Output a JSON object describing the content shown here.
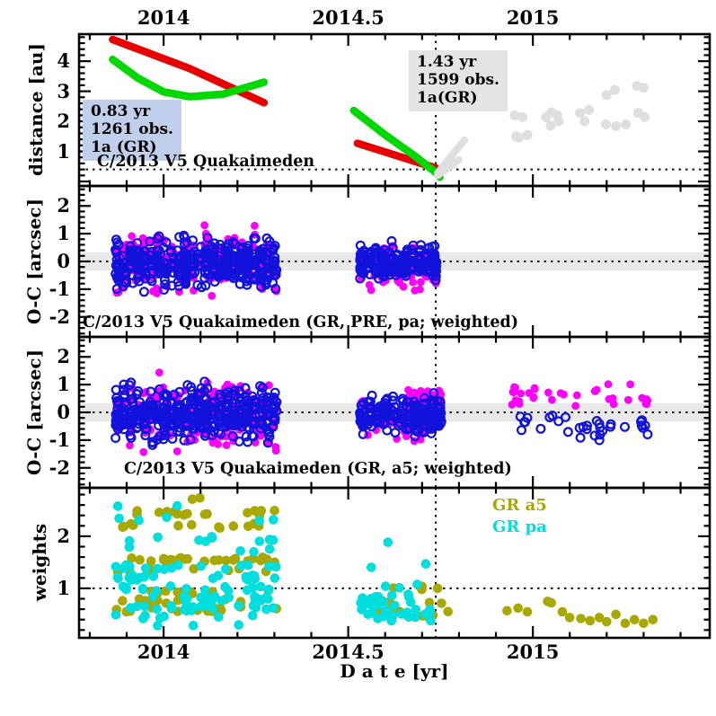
{
  "colors": {
    "band": "#e9e9e9",
    "frame": "#000000",
    "red": "#e80000",
    "green": "#00d800",
    "magenta": "#ff00ff",
    "blue": "#1212dd",
    "olive": "#a8a800",
    "cyan": "#00dede",
    "gray_points": "#dfdfdf",
    "annotation_blue_bg": "#bfcfec",
    "annotation_gray_bg": "#e4e4e4"
  },
  "xlabel": "D a t e [yr]",
  "chart_data": [
    {
      "id": "distance",
      "type": "scatter",
      "title": "C/2013 V5 Quakaimeden",
      "ylabel": "distance [au]",
      "ylim": [
        -0.15,
        4.9
      ],
      "yticks": [
        1,
        2,
        3,
        4
      ],
      "ytick_labels": [
        "1",
        "2",
        "3",
        "4"
      ],
      "xlim": [
        2013.771,
        2015.479
      ],
      "xticks": [
        2014,
        2014.5,
        2015
      ],
      "xtick_labels": [
        "2014",
        "2014.5",
        "2015"
      ],
      "hline": 0.4,
      "vline": 2014.737,
      "label": "C/2013 V5 Quakaimeden",
      "annotations": [
        {
          "lines": [
            "0.83 yr",
            "1261 obs.",
            "1a (GR)"
          ],
          "bg": "#bfcfec"
        },
        {
          "lines": [
            "1.43 yr",
            "1599 obs.",
            "1a(GR)"
          ],
          "bg": "#e4e4e4"
        }
      ],
      "series": [
        {
          "name": "helio-distance-arc1",
          "color": "#e80000",
          "width": 8.5,
          "path": [
            [
              2013.862,
              4.72
            ],
            [
              2014.07,
              3.76
            ],
            [
              2014.272,
              2.62
            ]
          ]
        },
        {
          "name": "geo-distance-arc1",
          "color": "#00d800",
          "width": 8.5,
          "path": [
            [
              2013.862,
              4.06
            ],
            [
              2013.93,
              3.44
            ],
            [
              2014.0,
              2.98
            ],
            [
              2014.07,
              2.82
            ],
            [
              2014.16,
              2.9
            ],
            [
              2014.272,
              3.3
            ]
          ]
        },
        {
          "name": "helio-distance-arc2",
          "color": "#e80000",
          "width": 8.5,
          "path": [
            [
              2014.525,
              1.27
            ],
            [
              2014.737,
              0.45
            ]
          ]
        },
        {
          "name": "geo-distance-arc2",
          "color": "#00d800",
          "width": 8.5,
          "path": [
            [
              2014.515,
              2.36
            ],
            [
              2014.6,
              1.55
            ],
            [
              2014.68,
              0.85
            ],
            [
              2014.737,
              0.3
            ],
            [
              2014.748,
              0.15
            ]
          ]
        },
        {
          "name": "predicted-branch-a",
          "color": "#dfdfdf",
          "width": 8,
          "path": [
            [
              2014.742,
              0.28
            ],
            [
              2014.815,
              1.38
            ]
          ]
        },
        {
          "name": "predicted-branch-b",
          "color": "#dfdfdf",
          "width": 8,
          "path": [
            [
              2014.742,
              0.2
            ],
            [
              2014.8,
              0.72
            ]
          ]
        },
        {
          "name": "predicted-points",
          "color": "#dfdfdf",
          "style": "filled",
          "r": 5.5,
          "points": [
            [
              2014.951,
              2.2
            ],
            [
              2014.972,
              2.14
            ],
            [
              2014.985,
              1.54
            ],
            [
              2014.962,
              1.46
            ],
            [
              2015.036,
              2.14
            ],
            [
              2015.048,
              1.86
            ],
            [
              2015.066,
              2.2
            ],
            [
              2015.07,
              2.0
            ],
            [
              2015.128,
              2.28
            ],
            [
              2015.14,
              2.0
            ],
            [
              2015.152,
              2.38
            ],
            [
              2015.2,
              2.88
            ],
            [
              2015.222,
              3.04
            ],
            [
              2015.198,
              1.9
            ],
            [
              2015.225,
              1.84
            ],
            [
              2015.252,
              1.9
            ],
            [
              2015.282,
              3.18
            ],
            [
              2015.3,
              3.12
            ],
            [
              2015.285,
              2.28
            ],
            [
              2015.303,
              2.14
            ],
            [
              2014.955,
              1.5
            ],
            [
              2015.05,
              2.3
            ]
          ]
        }
      ]
    },
    {
      "id": "oc-pre",
      "type": "scatter",
      "ylabel": "O-C [arcsec]",
      "ylim": [
        -2.72,
        2.72
      ],
      "yticks": [
        -2,
        -1,
        0,
        1,
        2
      ],
      "ytick_labels": [
        "-2",
        "-1",
        "0",
        "1",
        "2"
      ],
      "band": [
        -0.33,
        0.33
      ],
      "hline": 0,
      "vline": 2014.737,
      "label": "C/2013 V5 Quakaimeden (GR, PRE, pa; weighted)",
      "series": [
        {
          "name": "residuals-filled",
          "color": "#ff00ff",
          "style": "filled",
          "r": 4.4,
          "clusters": [
            {
              "t0": 2013.868,
              "t1": 2014.312,
              "clumps": 24,
              "n": 240,
              "mean": -0.02,
              "sd": 0.5,
              "min": -1.25,
              "max": 1.32
            },
            {
              "t0": 2014.53,
              "t1": 2014.745,
              "clumps": 11,
              "n": 110,
              "mean": -0.12,
              "sd": 0.4,
              "min": -1.05,
              "max": 0.62
            }
          ]
        },
        {
          "name": "residuals-open",
          "color": "#1212dd",
          "style": "open",
          "r": 4.4,
          "clusters": [
            {
              "t0": 2013.868,
              "t1": 2014.312,
              "clumps": 24,
              "n": 420,
              "mean": -0.05,
              "sd": 0.4,
              "min": -1.1,
              "max": 1.05
            },
            {
              "t0": 2014.53,
              "t1": 2014.745,
              "clumps": 11,
              "n": 190,
              "mean": -0.05,
              "sd": 0.28,
              "min": -0.85,
              "max": 0.8
            }
          ]
        }
      ]
    },
    {
      "id": "oc-a5",
      "type": "scatter",
      "ylabel": "O-C [arcsec]",
      "ylim": [
        -2.72,
        2.72
      ],
      "yticks": [
        -2,
        -1,
        0,
        1,
        2
      ],
      "ytick_labels": [
        "-2",
        "-1",
        "0",
        "1",
        "2"
      ],
      "band": [
        -0.33,
        0.33
      ],
      "hline": 0,
      "vline": 2014.737,
      "label": "C/2013 V5 Quakaimeden (GR, a5; weighted)",
      "series": [
        {
          "name": "residuals-filled",
          "color": "#ff00ff",
          "style": "filled",
          "r": 4.4,
          "clusters": [
            {
              "t0": 2013.868,
              "t1": 2014.312,
              "clumps": 24,
              "n": 250,
              "mean": 0.0,
              "sd": 0.55,
              "min": -1.5,
              "max": 1.5
            },
            {
              "t0": 2014.53,
              "t1": 2014.71,
              "clumps": 9,
              "n": 60,
              "mean": -0.15,
              "sd": 0.45,
              "min": -1.15,
              "max": 0.7
            },
            {
              "t0": 2014.66,
              "t1": 2014.758,
              "clumps": 6,
              "n": 70,
              "mean": 0.45,
              "sd": 0.2,
              "min": 0.05,
              "max": 0.9
            },
            {
              "t0": 2014.69,
              "t1": 2014.752,
              "clumps": 4,
              "n": 26,
              "mean": -0.55,
              "sd": 0.2,
              "min": -1.0,
              "max": -0.15
            },
            {
              "t0": 2014.94,
              "t1": 2015.325,
              "clumps": 9,
              "n": 36,
              "mean": 0.55,
              "sd": 0.22,
              "min": 0.2,
              "max": 1.05
            }
          ]
        },
        {
          "name": "residuals-open",
          "color": "#1212dd",
          "style": "open",
          "r": 4.4,
          "clusters": [
            {
              "t0": 2013.868,
              "t1": 2014.312,
              "clumps": 24,
              "n": 430,
              "mean": -0.05,
              "sd": 0.43,
              "min": -1.5,
              "max": 1.2
            },
            {
              "t0": 2014.53,
              "t1": 2014.76,
              "clumps": 11,
              "n": 200,
              "mean": -0.1,
              "sd": 0.32,
              "min": -1.0,
              "max": 0.8
            },
            {
              "t0": 2014.96,
              "t1": 2015.325,
              "clumps": 9,
              "n": 32,
              "mean": -0.5,
              "sd": 0.24,
              "min": -1.08,
              "max": -0.02
            }
          ]
        }
      ]
    },
    {
      "id": "weights",
      "type": "scatter",
      "ylabel": "weights",
      "ylim": [
        0.05,
        2.93
      ],
      "yticks": [
        1,
        2
      ],
      "ytick_labels": [
        "1",
        "2"
      ],
      "hline": 1,
      "vline": 2014.737,
      "legend": [
        {
          "label": "GR a5",
          "color": "#a8a800"
        },
        {
          "label": "GR pa",
          "color": "#00dede"
        }
      ],
      "series": [
        {
          "name": "gr-a5-weights",
          "color": "#a8a800",
          "style": "filled",
          "r": 5.3,
          "clusters": [
            {
              "t0": 2013.868,
              "t1": 2014.312,
              "clumps": 24,
              "dist": "bands",
              "jitter": 0.05,
              "bands": [
                [
                  2.7,
                  2
                ],
                [
                  2.45,
                  16
                ],
                [
                  2.2,
                  14
                ],
                [
                  1.55,
                  26
                ],
                [
                  1.35,
                  9
                ],
                [
                  0.95,
                  10
                ],
                [
                  0.75,
                  12
                ],
                [
                  0.6,
                  16
                ]
              ]
            },
            {
              "t0": 2014.53,
              "t1": 2014.79,
              "clumps": 10,
              "dist": "bands",
              "jitter": 0.05,
              "bands": [
                [
                  1.0,
                  3
                ],
                [
                  0.75,
                  6
                ],
                [
                  0.6,
                  8
                ],
                [
                  0.48,
                  6
                ]
              ]
            },
            {
              "points": [
                [
                  2014.742,
                  1.0
                ],
                [
                  2014.93,
                  0.57
                ],
                [
                  2014.96,
                  0.62
                ],
                [
                  2014.985,
                  0.55
                ],
                [
                  2015.04,
                  0.75
                ],
                [
                  2015.05,
                  0.72
                ],
                [
                  2015.08,
                  0.55
                ],
                [
                  2015.1,
                  0.44
                ],
                [
                  2015.13,
                  0.42
                ],
                [
                  2015.155,
                  0.38
                ],
                [
                  2015.18,
                  0.44
                ],
                [
                  2015.2,
                  0.36
                ],
                [
                  2015.225,
                  0.5
                ],
                [
                  2015.25,
                  0.33
                ],
                [
                  2015.275,
                  0.4
                ],
                [
                  2015.3,
                  0.33
                ],
                [
                  2015.325,
                  0.4
                ]
              ]
            }
          ]
        },
        {
          "name": "gr-pa-weights",
          "color": "#00dede",
          "style": "filled",
          "r": 5.3,
          "clusters": [
            {
              "t0": 2013.868,
              "t1": 2014.312,
              "clumps": 24,
              "dist": "bands",
              "jitter": 0.05,
              "bands": [
                [
                  2.55,
                  2
                ],
                [
                  2.35,
                  5
                ],
                [
                  1.95,
                  9
                ],
                [
                  1.75,
                  4
                ],
                [
                  1.4,
                  16
                ],
                [
                  1.2,
                  20
                ],
                [
                  1.0,
                  15
                ],
                [
                  0.8,
                  18
                ],
                [
                  0.62,
                  24
                ],
                [
                  0.45,
                  7
                ],
                [
                  0.3,
                  3
                ]
              ]
            },
            {
              "t0": 2014.53,
              "t1": 2014.74,
              "clumps": 10,
              "dist": "bands",
              "jitter": 0.05,
              "bands": [
                [
                  1.9,
                  1
                ],
                [
                  1.45,
                  2
                ],
                [
                  1.05,
                  3
                ],
                [
                  0.85,
                  7
                ],
                [
                  0.7,
                  9
                ],
                [
                  0.55,
                  11
                ],
                [
                  0.42,
                  7
                ]
              ]
            }
          ]
        }
      ]
    }
  ]
}
